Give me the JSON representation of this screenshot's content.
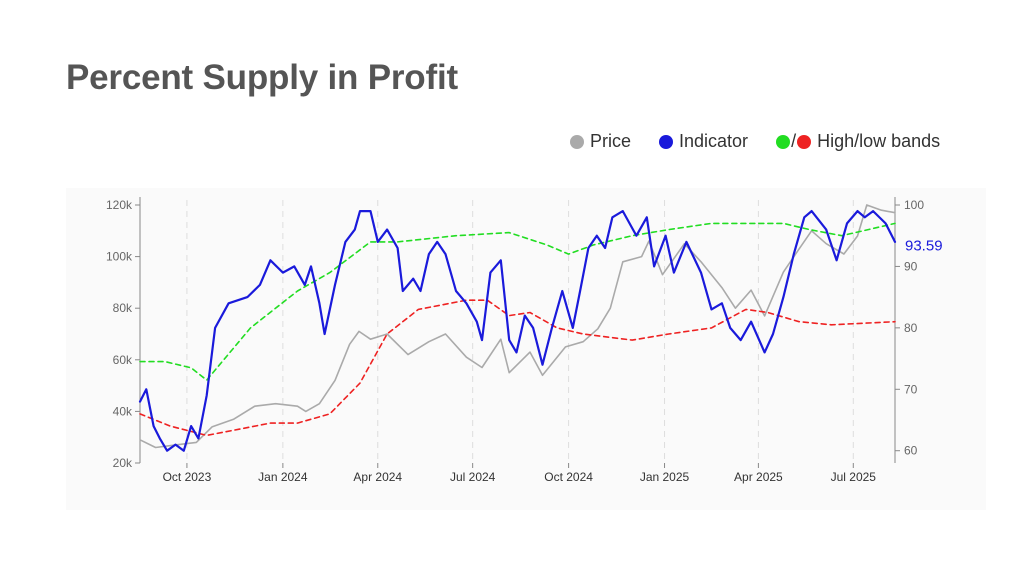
{
  "title": "Percent Supply in Profit",
  "legend": {
    "items": [
      {
        "label": "Price",
        "color": "#aaaaaa"
      },
      {
        "label": "Indicator",
        "color": "#1a1adb"
      },
      {
        "label": "High/low bands",
        "colors": [
          "#22dd22",
          "#ee2222"
        ],
        "separator": "/"
      }
    ]
  },
  "chart_data": {
    "type": "line",
    "title": "",
    "grid": "vertical dashed at quarter ticks",
    "x_ticks": [
      "Oct 2023",
      "Jan 2024",
      "Apr 2024",
      "Jul 2024",
      "Oct 2024",
      "Jan 2025",
      "Apr 2025",
      "Jul 2025"
    ],
    "x_range": [
      "2023-08-17",
      "2025-08-10"
    ],
    "y_left": {
      "ticks": [
        "20k",
        "40k",
        "60k",
        "80k",
        "100k",
        "120k"
      ],
      "range": [
        20000,
        120000
      ]
    },
    "y_right": {
      "ticks": [
        "60",
        "70",
        "80",
        "90",
        "100"
      ],
      "range": [
        58,
        100
      ]
    },
    "last_value_label": "93.59",
    "series": [
      {
        "name": "Price",
        "axis": "left",
        "color": "#aaaaaa",
        "points": [
          [
            "2023-08-17",
            29000
          ],
          [
            "2023-09-01",
            26000
          ],
          [
            "2023-09-20",
            27000
          ],
          [
            "2023-10-10",
            28000
          ],
          [
            "2023-10-25",
            34000
          ],
          [
            "2023-11-15",
            37000
          ],
          [
            "2023-12-05",
            42000
          ],
          [
            "2023-12-25",
            43000
          ],
          [
            "2024-01-15",
            42000
          ],
          [
            "2024-01-23",
            40000
          ],
          [
            "2024-02-05",
            43000
          ],
          [
            "2024-02-20",
            52000
          ],
          [
            "2024-03-05",
            66000
          ],
          [
            "2024-03-14",
            71000
          ],
          [
            "2024-03-25",
            68000
          ],
          [
            "2024-04-10",
            70000
          ],
          [
            "2024-04-30",
            62000
          ],
          [
            "2024-05-20",
            67000
          ],
          [
            "2024-06-05",
            70000
          ],
          [
            "2024-06-25",
            61000
          ],
          [
            "2024-07-10",
            57000
          ],
          [
            "2024-07-28",
            68000
          ],
          [
            "2024-08-05",
            55000
          ],
          [
            "2024-08-25",
            63000
          ],
          [
            "2024-09-06",
            54000
          ],
          [
            "2024-09-28",
            65000
          ],
          [
            "2024-10-15",
            67000
          ],
          [
            "2024-10-29",
            72000
          ],
          [
            "2024-11-10",
            80000
          ],
          [
            "2024-11-22",
            98000
          ],
          [
            "2024-12-10",
            100000
          ],
          [
            "2024-12-17",
            106000
          ],
          [
            "2024-12-30",
            93000
          ],
          [
            "2025-01-20",
            105000
          ],
          [
            "2025-02-05",
            98000
          ],
          [
            "2025-02-25",
            88000
          ],
          [
            "2025-03-10",
            80000
          ],
          [
            "2025-03-25",
            87000
          ],
          [
            "2025-04-07",
            77000
          ],
          [
            "2025-04-25",
            94000
          ],
          [
            "2025-05-10",
            103000
          ],
          [
            "2025-05-22",
            110000
          ],
          [
            "2025-06-05",
            105000
          ],
          [
            "2025-06-22",
            101000
          ],
          [
            "2025-07-05",
            108000
          ],
          [
            "2025-07-14",
            120000
          ],
          [
            "2025-07-28",
            118000
          ],
          [
            "2025-08-10",
            117000
          ]
        ]
      },
      {
        "name": "Indicator",
        "axis": "right",
        "color": "#1a1adb",
        "points": [
          [
            "2023-08-17",
            68
          ],
          [
            "2023-08-23",
            70
          ],
          [
            "2023-08-30",
            64
          ],
          [
            "2023-09-05",
            62
          ],
          [
            "2023-09-12",
            60
          ],
          [
            "2023-09-20",
            61
          ],
          [
            "2023-09-28",
            60
          ],
          [
            "2023-10-05",
            64
          ],
          [
            "2023-10-12",
            62
          ],
          [
            "2023-10-20",
            69
          ],
          [
            "2023-10-28",
            80
          ],
          [
            "2023-11-10",
            84
          ],
          [
            "2023-11-28",
            85
          ],
          [
            "2023-12-10",
            87
          ],
          [
            "2023-12-20",
            91
          ],
          [
            "2024-01-01",
            89
          ],
          [
            "2024-01-12",
            90
          ],
          [
            "2024-01-22",
            87
          ],
          [
            "2024-01-28",
            90
          ],
          [
            "2024-02-05",
            84
          ],
          [
            "2024-02-10",
            79
          ],
          [
            "2024-02-20",
            87
          ],
          [
            "2024-03-01",
            94
          ],
          [
            "2024-03-10",
            96
          ],
          [
            "2024-03-15",
            99
          ],
          [
            "2024-03-25",
            99
          ],
          [
            "2024-04-01",
            94
          ],
          [
            "2024-04-10",
            96
          ],
          [
            "2024-04-20",
            93
          ],
          [
            "2024-04-25",
            86
          ],
          [
            "2024-05-05",
            88
          ],
          [
            "2024-05-12",
            86
          ],
          [
            "2024-05-20",
            92
          ],
          [
            "2024-05-28",
            94
          ],
          [
            "2024-06-05",
            92
          ],
          [
            "2024-06-15",
            86
          ],
          [
            "2024-06-25",
            84
          ],
          [
            "2024-07-05",
            81
          ],
          [
            "2024-07-10",
            78
          ],
          [
            "2024-07-18",
            89
          ],
          [
            "2024-07-28",
            91
          ],
          [
            "2024-08-05",
            78
          ],
          [
            "2024-08-12",
            76
          ],
          [
            "2024-08-20",
            82
          ],
          [
            "2024-08-28",
            80
          ],
          [
            "2024-09-06",
            74
          ],
          [
            "2024-09-15",
            80
          ],
          [
            "2024-09-25",
            86
          ],
          [
            "2024-10-05",
            80
          ],
          [
            "2024-10-12",
            86
          ],
          [
            "2024-10-20",
            93
          ],
          [
            "2024-10-28",
            95
          ],
          [
            "2024-11-05",
            93
          ],
          [
            "2024-11-12",
            98
          ],
          [
            "2024-11-22",
            99
          ],
          [
            "2024-12-05",
            95
          ],
          [
            "2024-12-15",
            98
          ],
          [
            "2024-12-22",
            90
          ],
          [
            "2025-01-02",
            95
          ],
          [
            "2025-01-10",
            89
          ],
          [
            "2025-01-22",
            94
          ],
          [
            "2025-02-05",
            89
          ],
          [
            "2025-02-15",
            83
          ],
          [
            "2025-02-25",
            84
          ],
          [
            "2025-03-05",
            80
          ],
          [
            "2025-03-15",
            78
          ],
          [
            "2025-03-25",
            81
          ],
          [
            "2025-04-07",
            76
          ],
          [
            "2025-04-15",
            79
          ],
          [
            "2025-04-25",
            85
          ],
          [
            "2025-05-05",
            92
          ],
          [
            "2025-05-15",
            98
          ],
          [
            "2025-05-22",
            99
          ],
          [
            "2025-06-05",
            96
          ],
          [
            "2025-06-15",
            91
          ],
          [
            "2025-06-25",
            97
          ],
          [
            "2025-07-05",
            99
          ],
          [
            "2025-07-12",
            98
          ],
          [
            "2025-07-20",
            99
          ],
          [
            "2025-08-01",
            97
          ],
          [
            "2025-08-10",
            94
          ]
        ]
      },
      {
        "name": "High band",
        "axis": "right",
        "color": "#22dd22",
        "dashed": true,
        "points": [
          [
            "2023-08-17",
            74.5
          ],
          [
            "2023-09-10",
            74.5
          ],
          [
            "2023-10-05",
            73.5
          ],
          [
            "2023-10-20",
            71.5
          ],
          [
            "2023-12-01",
            80
          ],
          [
            "2024-01-15",
            86
          ],
          [
            "2024-02-15",
            89
          ],
          [
            "2024-03-25",
            94
          ],
          [
            "2024-04-20",
            94
          ],
          [
            "2024-06-15",
            95
          ],
          [
            "2024-08-05",
            95.5
          ],
          [
            "2024-09-10",
            93.5
          ],
          [
            "2024-10-01",
            92
          ],
          [
            "2024-10-25",
            93.5
          ],
          [
            "2024-12-01",
            95
          ],
          [
            "2025-01-05",
            96
          ],
          [
            "2025-02-15",
            97
          ],
          [
            "2025-04-25",
            97
          ],
          [
            "2025-05-20",
            96
          ],
          [
            "2025-06-20",
            95
          ],
          [
            "2025-08-10",
            97
          ]
        ]
      },
      {
        "name": "Low band",
        "axis": "right",
        "color": "#ee2222",
        "dashed": true,
        "points": [
          [
            "2023-08-17",
            66
          ],
          [
            "2023-09-15",
            64
          ],
          [
            "2023-10-20",
            62.5
          ],
          [
            "2023-11-20",
            63.5
          ],
          [
            "2023-12-20",
            64.5
          ],
          [
            "2024-01-15",
            64.5
          ],
          [
            "2024-02-15",
            66
          ],
          [
            "2024-03-15",
            71
          ],
          [
            "2024-04-10",
            79
          ],
          [
            "2024-05-10",
            83
          ],
          [
            "2024-06-25",
            84.5
          ],
          [
            "2024-07-15",
            84.5
          ],
          [
            "2024-08-05",
            82
          ],
          [
            "2024-08-25",
            82.5
          ],
          [
            "2024-09-20",
            80
          ],
          [
            "2024-10-15",
            79
          ],
          [
            "2024-12-01",
            78
          ],
          [
            "2025-01-05",
            79
          ],
          [
            "2025-02-15",
            80
          ],
          [
            "2025-03-20",
            83
          ],
          [
            "2025-04-10",
            82.5
          ],
          [
            "2025-05-10",
            81
          ],
          [
            "2025-06-10",
            80.5
          ],
          [
            "2025-08-10",
            81
          ]
        ]
      }
    ]
  }
}
